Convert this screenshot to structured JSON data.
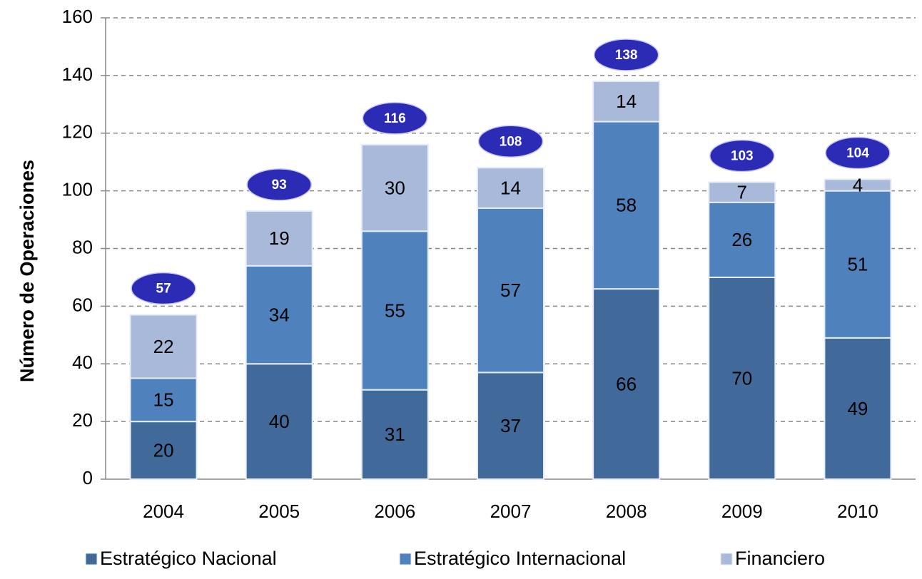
{
  "chart_data": {
    "type": "stacked_bar",
    "y_label": "Número de Operaciones",
    "categories": [
      "2004",
      "2005",
      "2006",
      "2007",
      "2008",
      "2009",
      "2010"
    ],
    "series": [
      {
        "name": "Estratégico Nacional",
        "color": "#41699a",
        "values": [
          20,
          40,
          31,
          37,
          66,
          70,
          49
        ]
      },
      {
        "name": "Estratégico Internacional",
        "color": "#4f81bd",
        "values": [
          15,
          34,
          55,
          57,
          58,
          26,
          51
        ]
      },
      {
        "name": "Financiero",
        "color": "#a9b9d9",
        "values": [
          22,
          19,
          30,
          14,
          14,
          7,
          4
        ]
      }
    ],
    "totals": [
      57,
      93,
      116,
      108,
      138,
      103,
      104
    ],
    "total_color": "#2b2bb5",
    "ylim": [
      0,
      160
    ],
    "yticks": [
      0,
      20,
      40,
      60,
      80,
      100,
      120,
      140,
      160
    ],
    "grid": true,
    "legend": "bottom"
  }
}
